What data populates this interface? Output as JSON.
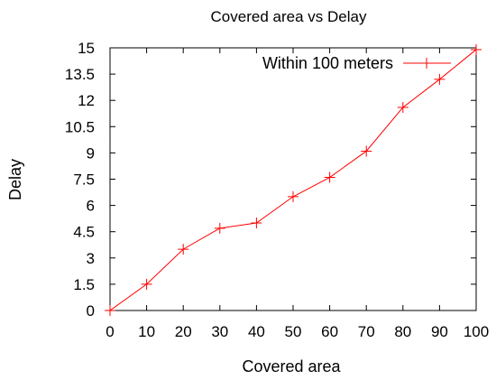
{
  "chart_data": {
    "type": "line",
    "title": "Covered area vs Delay",
    "xlabel": "Covered area",
    "ylabel": "Delay",
    "xlim": [
      0,
      100
    ],
    "ylim": [
      0,
      15
    ],
    "xticks": [
      "0",
      "10",
      "20",
      "30",
      "40",
      "50",
      "60",
      "70",
      "80",
      "90",
      "100"
    ],
    "yticks": [
      "0",
      "1.5",
      "3",
      "4.5",
      "6",
      "7.5",
      "9",
      "10.5",
      "12",
      "13.5",
      "15"
    ],
    "grid": false,
    "legend_position": "top-right",
    "series": [
      {
        "name": "Within 100 meters",
        "color": "#ff0000",
        "marker": "plus",
        "x": [
          0,
          10,
          20,
          30,
          40,
          50,
          60,
          70,
          80,
          90,
          100
        ],
        "y": [
          0,
          1.5,
          3.5,
          4.7,
          5.0,
          6.5,
          7.6,
          9.1,
          11.6,
          13.2,
          14.9
        ]
      }
    ]
  }
}
